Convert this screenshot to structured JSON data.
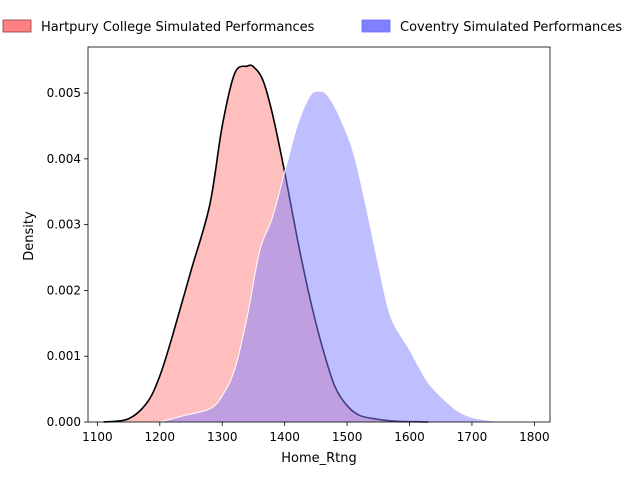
{
  "chart_data": {
    "type": "area",
    "title": "",
    "xlabel": "Home_Rtng",
    "ylabel": "Density",
    "xlim": [
      1085,
      1825
    ],
    "ylim": [
      0,
      0.0057
    ],
    "xticks": [
      1100,
      1200,
      1300,
      1400,
      1500,
      1600,
      1700,
      1800
    ],
    "yticks": [
      0.0,
      0.001,
      0.002,
      0.003,
      0.004,
      0.005
    ],
    "ytick_labels": [
      "0.000",
      "0.001",
      "0.002",
      "0.003",
      "0.004",
      "0.005"
    ],
    "grid": false,
    "legend_placement": "top",
    "series": [
      {
        "name": "Hartpury College Simulated Performances",
        "fill": "#ff8080",
        "stroke": "#000000",
        "x": [
          1110,
          1150,
          1180,
          1200,
          1220,
          1250,
          1280,
          1300,
          1320,
          1340,
          1350,
          1365,
          1380,
          1400,
          1420,
          1440,
          1460,
          1480,
          1500,
          1520,
          1550,
          1580,
          1610,
          1630
        ],
        "y": [
          0.0,
          5e-05,
          0.0003,
          0.0007,
          0.0013,
          0.0023,
          0.0033,
          0.0045,
          0.0053,
          0.00541,
          0.0054,
          0.0052,
          0.0047,
          0.0038,
          0.0028,
          0.0019,
          0.00115,
          0.00055,
          0.00025,
          0.0001,
          4e-05,
          1e-05,
          5e-06,
          0.0
        ]
      },
      {
        "name": "Coventry Simulated Performances",
        "fill": "#8080ff",
        "stroke": "#ffffff",
        "x": [
          1200,
          1240,
          1280,
          1300,
          1320,
          1340,
          1360,
          1380,
          1400,
          1420,
          1440,
          1455,
          1470,
          1490,
          1510,
          1530,
          1550,
          1570,
          1600,
          1630,
          1660,
          1680,
          1700,
          1730,
          1750
        ],
        "y": [
          0.0,
          0.0001,
          0.0002,
          0.0004,
          0.0008,
          0.0016,
          0.0026,
          0.0031,
          0.0038,
          0.0045,
          0.00495,
          0.00503,
          0.00495,
          0.0046,
          0.0041,
          0.0033,
          0.0024,
          0.0016,
          0.0011,
          0.0006,
          0.0003,
          0.00015,
          7e-05,
          2e-05,
          0.0
        ]
      }
    ]
  }
}
